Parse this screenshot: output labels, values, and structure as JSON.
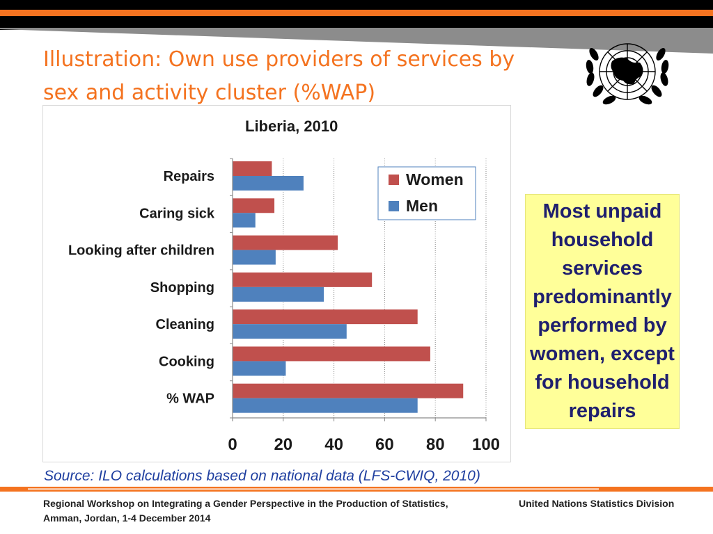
{
  "slide": {
    "title": "Illustration: Own use providers of services by sex and activity cluster (%WAP)",
    "source": "Source: ILO calculations based on national data (LFS-CWIQ, 2010)",
    "callout": "Most unpaid household services predominantly performed by women, except for household repairs",
    "footer_left": "Regional Workshop on Integrating a Gender Perspective in the Production of Statistics, Amman, Jordan, 1-4 December 2014",
    "footer_right": "United Nations Statistics Division",
    "logo_icon": "un-emblem-icon"
  },
  "colors": {
    "accent": "#f47320",
    "women": "#c0504d",
    "men": "#4f81bd",
    "callout_bg": "#ffff99",
    "callout_text": "#1f1f6e",
    "source_text": "#1f3fa0"
  },
  "chart_data": {
    "type": "bar",
    "orientation": "horizontal",
    "title": "Liberia, 2010",
    "categories": [
      "Repairs",
      "Caring sick",
      "Looking after children",
      "Shopping",
      "Cleaning",
      "Cooking",
      "% WAP"
    ],
    "series": [
      {
        "name": "Women",
        "values": [
          15.5,
          16.5,
          41.5,
          55,
          73,
          78,
          91
        ]
      },
      {
        "name": "Men",
        "values": [
          28,
          9,
          17,
          36,
          45,
          21,
          73
        ]
      }
    ],
    "xlim": [
      0,
      100
    ],
    "xticks": [
      0,
      20,
      40,
      60,
      80,
      100
    ],
    "xlabel": "",
    "ylabel": "",
    "grid": "vertical dotted",
    "legend": "top-right"
  }
}
